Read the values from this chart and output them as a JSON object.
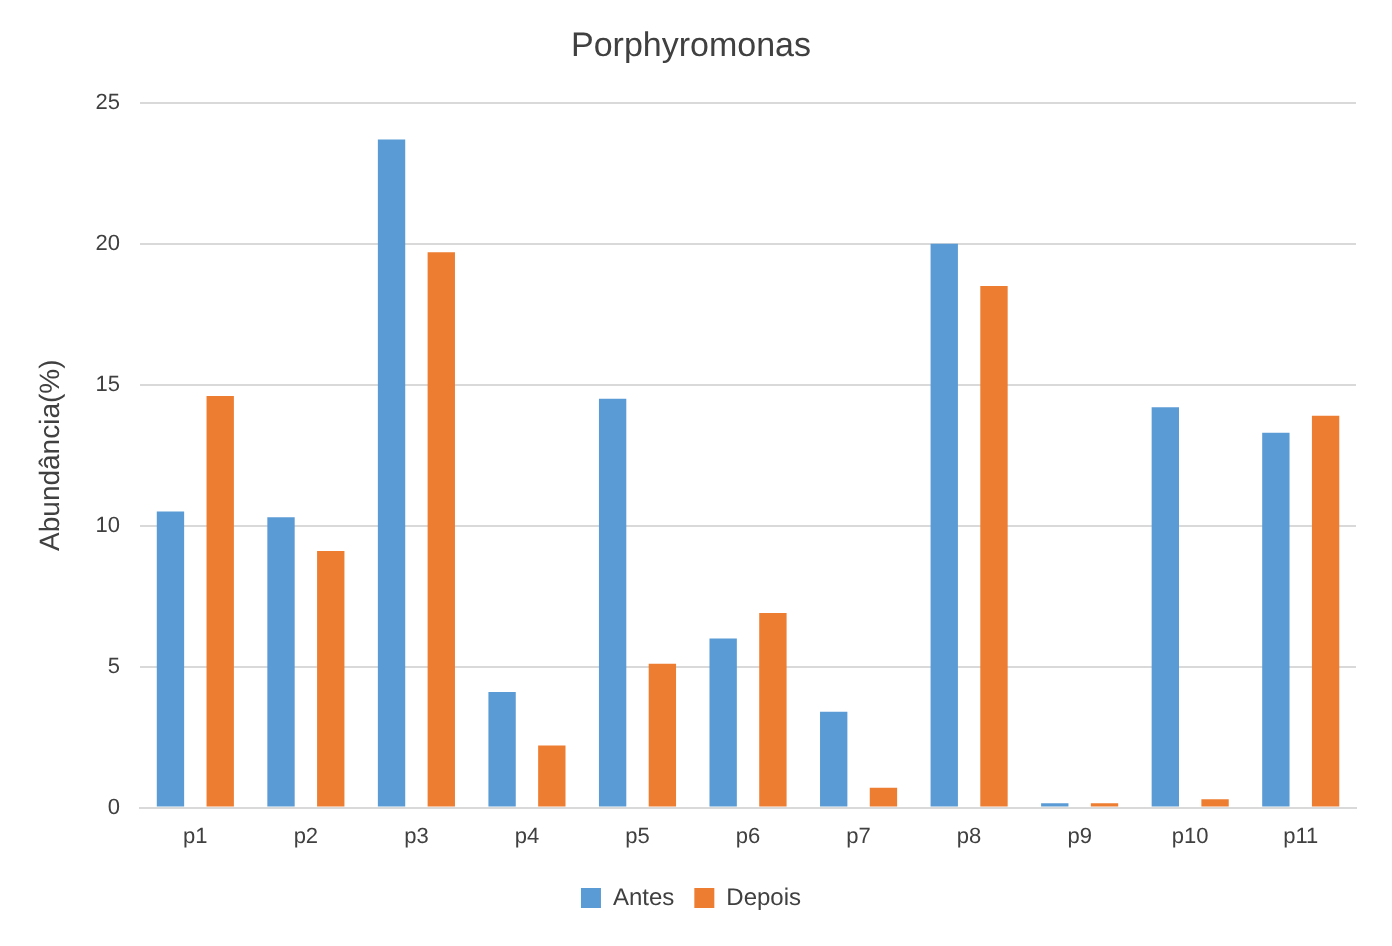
{
  "chart_data": {
    "type": "bar",
    "title": "Porphyromonas",
    "ylabel": "Abundância(%)",
    "categories": [
      "p1",
      "p2",
      "p3",
      "p4",
      "p5",
      "p6",
      "p7",
      "p8",
      "p9",
      "p10",
      "p11"
    ],
    "series": [
      {
        "name": "Antes",
        "color": "#5b9bd5",
        "values": [
          10.5,
          10.3,
          23.7,
          4.1,
          14.5,
          6.0,
          3.4,
          20.0,
          0.15,
          14.2,
          13.3
        ]
      },
      {
        "name": "Depois",
        "color": "#ed7d31",
        "values": [
          14.6,
          9.1,
          19.7,
          2.2,
          5.1,
          6.9,
          0.7,
          18.5,
          0.15,
          0.3,
          13.9
        ]
      }
    ],
    "ylim": [
      0,
      25
    ],
    "yticks": [
      0,
      5,
      10,
      15,
      20,
      25
    ],
    "grid": "y",
    "legend": "bottom"
  }
}
